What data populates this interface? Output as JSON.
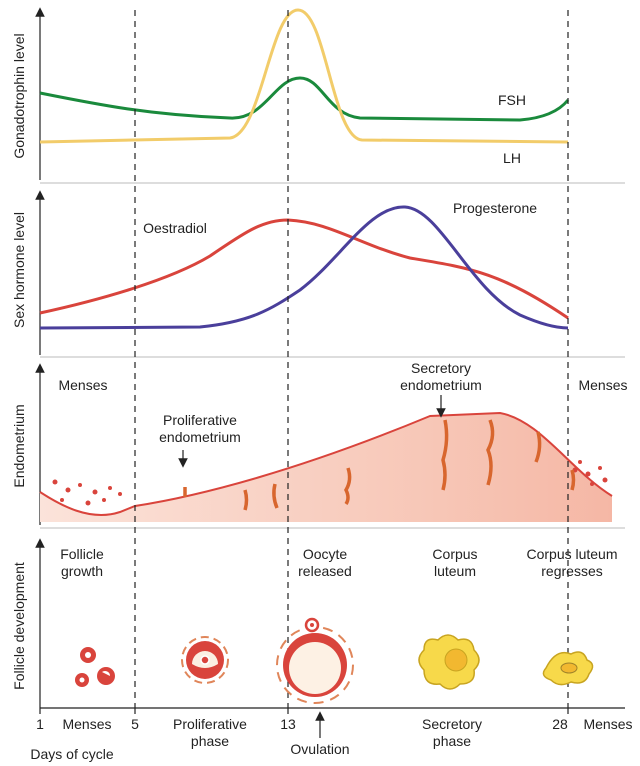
{
  "panels": [
    {
      "y_label": "Gonadotrophin level",
      "curve_labels": [
        "FSH",
        "LH"
      ]
    },
    {
      "y_label": "Sex hormone level",
      "curve_labels": [
        "Oestradiol",
        "Progesterone"
      ]
    },
    {
      "y_label": "Endometrium",
      "labels": [
        "Menses",
        "Proliferative endometrium",
        "Secretory endometrium",
        "Menses"
      ]
    },
    {
      "y_label": "Follicle development",
      "labels": [
        "Follicle growth",
        "Oocyte released",
        "Corpus luteum",
        "Corpus luteum regresses"
      ]
    }
  ],
  "x_axis": {
    "days": [
      "1",
      "5",
      "13",
      "28"
    ],
    "phases": [
      "Menses",
      "Proliferative phase",
      "Ovulation",
      "Secretory phase",
      "Menses"
    ],
    "title": "Days of cycle"
  }
}
